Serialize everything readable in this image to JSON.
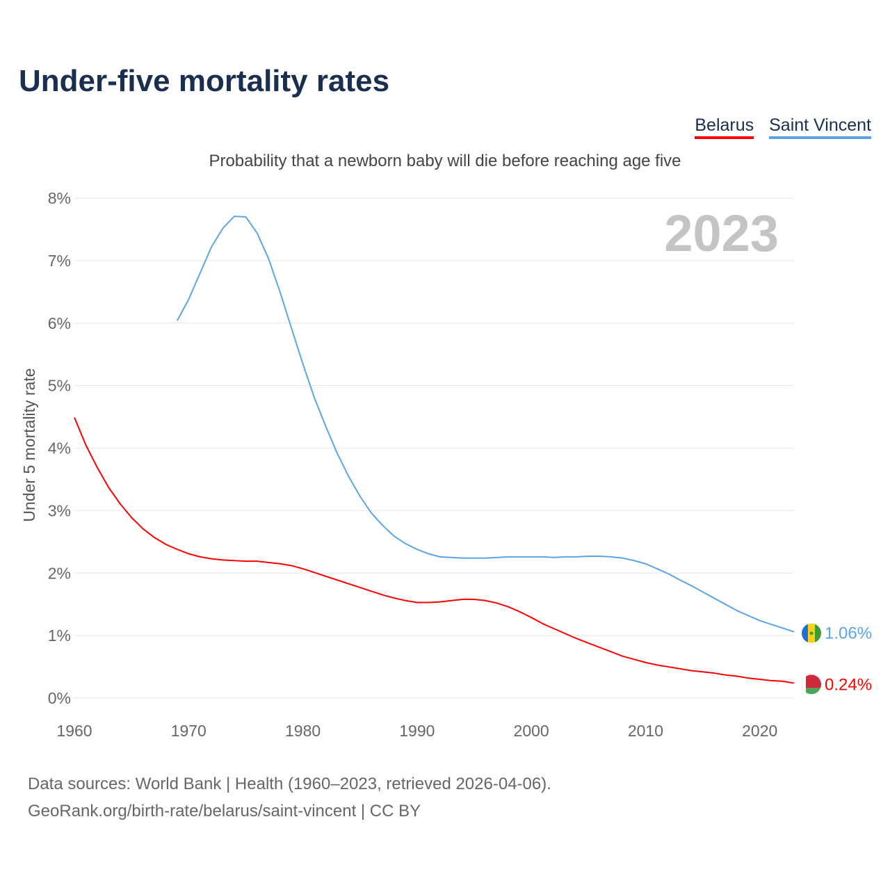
{
  "title": "Under-five mortality rates",
  "subtitle": "Probability that a newborn baby will die before reaching age five",
  "source_line1": "Data sources: World Bank | Health (1960–2023, retrieved 2026-04-06).",
  "source_line2": "GeoRank.org/birth-rate/belarus/saint-vincent | CC BY",
  "chart_data": {
    "type": "line",
    "title": "Under-five mortality rates",
    "ylabel": "Under 5 mortality rate",
    "xlabel": "",
    "year_label": "2023",
    "xlim": [
      1960,
      2023
    ],
    "ylim": [
      0,
      8
    ],
    "x_ticks": [
      1960,
      1970,
      1980,
      1990,
      2000,
      2010,
      2020
    ],
    "y_ticks": [
      "0%",
      "1%",
      "2%",
      "3%",
      "4%",
      "5%",
      "6%",
      "7%",
      "8%"
    ],
    "grid": true,
    "legend_placement": "top-right",
    "series": [
      {
        "name": "Belarus",
        "color": "#ff0000",
        "end_label": "0.24%",
        "start_year": 1960,
        "values": [
          4.49,
          4.05,
          3.69,
          3.37,
          3.11,
          2.89,
          2.71,
          2.57,
          2.46,
          2.38,
          2.31,
          2.26,
          2.23,
          2.21,
          2.2,
          2.19,
          2.19,
          2.17,
          2.15,
          2.12,
          2.07,
          2.01,
          1.95,
          1.89,
          1.83,
          1.77,
          1.71,
          1.65,
          1.6,
          1.56,
          1.53,
          1.53,
          1.54,
          1.56,
          1.58,
          1.58,
          1.56,
          1.52,
          1.46,
          1.38,
          1.29,
          1.19,
          1.11,
          1.03,
          0.95,
          0.88,
          0.81,
          0.74,
          0.67,
          0.62,
          0.57,
          0.53,
          0.5,
          0.47,
          0.44,
          0.42,
          0.4,
          0.37,
          0.35,
          0.32,
          0.3,
          0.28,
          0.27,
          0.24
        ]
      },
      {
        "name": "Saint Vincent",
        "color": "#5ba4e8",
        "end_label": "1.06%",
        "start_year": 1969,
        "values": [
          6.04,
          6.38,
          6.8,
          7.22,
          7.52,
          7.71,
          7.7,
          7.44,
          7.03,
          6.5,
          5.92,
          5.35,
          4.81,
          4.35,
          3.92,
          3.55,
          3.23,
          2.96,
          2.76,
          2.59,
          2.47,
          2.38,
          2.31,
          2.26,
          2.25,
          2.24,
          2.24,
          2.24,
          2.25,
          2.26,
          2.26,
          2.26,
          2.26,
          2.25,
          2.26,
          2.26,
          2.27,
          2.27,
          2.26,
          2.24,
          2.2,
          2.15,
          2.07,
          1.99,
          1.89,
          1.8,
          1.7,
          1.6,
          1.5,
          1.4,
          1.32,
          1.24,
          1.18,
          1.12,
          1.06
        ]
      }
    ]
  }
}
